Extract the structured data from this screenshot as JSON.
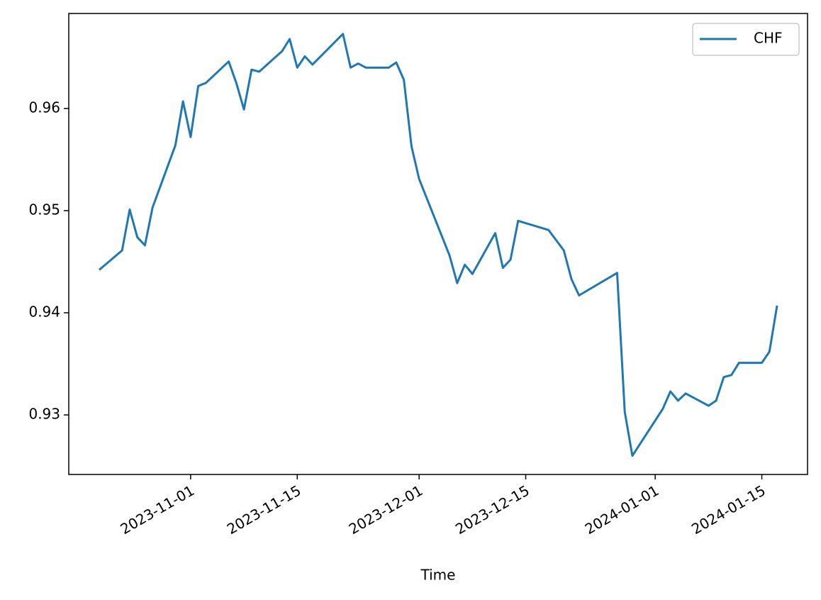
{
  "chart_data": {
    "type": "line",
    "xlabel": "Time",
    "x": [
      "2023-10-20",
      "2023-10-23",
      "2023-10-24",
      "2023-10-25",
      "2023-10-26",
      "2023-10-27",
      "2023-10-30",
      "2023-10-31",
      "2023-11-01",
      "2023-11-02",
      "2023-11-03",
      "2023-11-06",
      "2023-11-07",
      "2023-11-08",
      "2023-11-09",
      "2023-11-10",
      "2023-11-13",
      "2023-11-14",
      "2023-11-15",
      "2023-11-16",
      "2023-11-17",
      "2023-11-21",
      "2023-11-22",
      "2023-11-23",
      "2023-11-24",
      "2023-11-27",
      "2023-11-28",
      "2023-11-29",
      "2023-11-30",
      "2023-12-01",
      "2023-12-05",
      "2023-12-06",
      "2023-12-07",
      "2023-12-08",
      "2023-12-11",
      "2023-12-12",
      "2023-12-13",
      "2023-12-14",
      "2023-12-18",
      "2023-12-20",
      "2023-12-21",
      "2023-12-22",
      "2023-12-27",
      "2023-12-28",
      "2023-12-29",
      "2024-01-02",
      "2024-01-03",
      "2024-01-04",
      "2024-01-05",
      "2024-01-08",
      "2024-01-09",
      "2024-01-10",
      "2024-01-11",
      "2024-01-12",
      "2024-01-15",
      "2024-01-16",
      "2024-01-17"
    ],
    "series": [
      {
        "name": "CHF",
        "color": "#1f77b4",
        "values": [
          0.9442,
          0.9461,
          0.9501,
          0.9474,
          0.9466,
          0.9503,
          0.9564,
          0.9607,
          0.9572,
          0.9622,
          0.9625,
          0.9646,
          0.9625,
          0.9599,
          0.9638,
          0.9636,
          0.9656,
          0.9668,
          0.964,
          0.9651,
          0.9643,
          0.9673,
          0.964,
          0.9644,
          0.964,
          0.964,
          0.9645,
          0.9628,
          0.9563,
          0.9531,
          0.9456,
          0.9429,
          0.9447,
          0.9438,
          0.9478,
          0.9444,
          0.9452,
          0.949,
          0.9481,
          0.9461,
          0.9433,
          0.9417,
          0.9439,
          0.9303,
          0.926,
          0.9306,
          0.9323,
          0.9314,
          0.9321,
          0.9309,
          0.9314,
          0.9337,
          0.9339,
          0.9351,
          0.9351,
          0.9362,
          0.9407
        ]
      }
    ],
    "xlim": [
      "2023-10-16",
      "2024-01-21"
    ],
    "xticks": [
      "2023-11-01",
      "2023-11-15",
      "2023-12-01",
      "2023-12-15",
      "2024-01-01",
      "2024-01-15"
    ],
    "ylim": [
      0.92417,
      0.9693
    ],
    "yticks": [
      0.93,
      0.94,
      0.95,
      0.96
    ],
    "grid": false,
    "legend": "upper right"
  }
}
